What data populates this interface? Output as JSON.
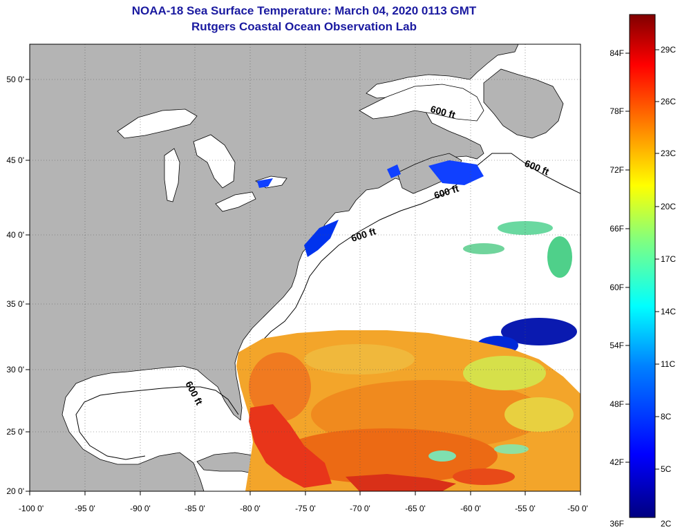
{
  "title": "NOAA-18 Sea Surface Temperature:  March 04, 2020 0113 GMT",
  "subtitle": "Rutgers Coastal Ocean Observation Lab",
  "map": {
    "lon_range": [
      -100,
      -50
    ],
    "lat_range": [
      20,
      52
    ],
    "lon_ticks": [
      "-100 0'",
      "-95 0'",
      "-90 0'",
      "-85 0'",
      "-80 0'",
      "-75 0'",
      "-70 0'",
      "-65 0'",
      "-60 0'",
      "-55 0'",
      "-50 0'"
    ],
    "lat_ticks": [
      "50 0'",
      "45 0'",
      "40 0'",
      "35 0'",
      "30 0'",
      "25 0'",
      "20 0'"
    ],
    "contour_labels": [
      "600 ft",
      "600 ft",
      "600 ft",
      "600 ft",
      "600 ft"
    ],
    "colors": {
      "land": "#b4b4b4",
      "no_data": "#ffffff"
    }
  },
  "colorbar": {
    "fahrenheit": [
      "84F",
      "78F",
      "72F",
      "66F",
      "60F",
      "54F",
      "48F",
      "42F",
      "36F"
    ],
    "celsius": [
      "29C",
      "26C",
      "23C",
      "20C",
      "17C",
      "14C",
      "11C",
      "8C",
      "5C",
      "2C"
    ],
    "colors": [
      "#000080",
      "#0000ff",
      "#0080ff",
      "#00ffff",
      "#80ff80",
      "#ffff00",
      "#ff8000",
      "#ff0000",
      "#800000"
    ]
  }
}
